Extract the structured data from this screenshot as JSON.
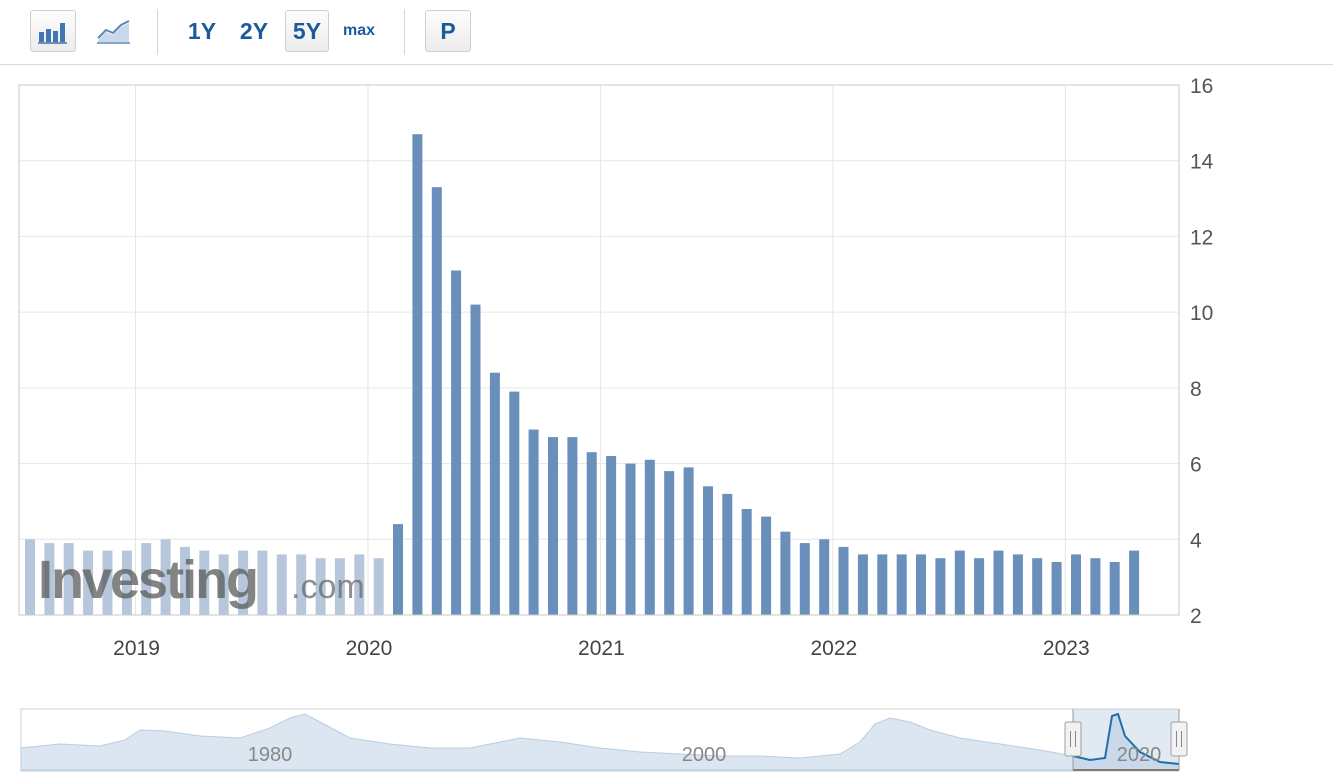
{
  "toolbar": {
    "bar_chart_icon": "bar-chart-icon",
    "line_chart_icon": "line-chart-icon",
    "ranges": [
      "1Y",
      "2Y",
      "5Y",
      "max"
    ],
    "active_range": "5Y",
    "p_label": "P"
  },
  "watermark": {
    "brand": "Investing",
    "suffix": ".com"
  },
  "colors": {
    "bar": "#6a8fba",
    "bar_watermarked": "#b6c7dc",
    "grid": "#e6e6e6",
    "navigator_line": "#1f6fa8",
    "navigator_fill": "#dbe6f1"
  },
  "chart_data": {
    "type": "bar",
    "title": "",
    "xlabel": "",
    "ylabel": "",
    "ylim": [
      2,
      16
    ],
    "y_ticks": [
      2,
      4,
      6,
      8,
      10,
      12,
      14,
      16
    ],
    "y_axis_side": "right",
    "x_ticks": [
      "2019",
      "2020",
      "2021",
      "2022",
      "2023"
    ],
    "grid": true,
    "legend": "none",
    "x_first": "2018-07",
    "values": [
      4.0,
      3.9,
      3.9,
      3.7,
      3.7,
      3.7,
      3.9,
      4.0,
      3.8,
      3.7,
      3.6,
      3.7,
      3.7,
      3.6,
      3.6,
      3.5,
      3.5,
      3.6,
      3.5,
      4.4,
      14.7,
      13.3,
      11.1,
      10.2,
      8.4,
      7.9,
      6.9,
      6.7,
      6.7,
      6.3,
      6.2,
      6.0,
      6.1,
      5.8,
      5.9,
      5.4,
      5.2,
      4.8,
      4.6,
      4.2,
      3.9,
      4.0,
      3.8,
      3.6,
      3.6,
      3.6,
      3.6,
      3.5,
      3.7,
      3.5,
      3.7,
      3.6,
      3.5,
      3.4,
      3.6,
      3.5,
      3.4,
      3.7
    ]
  },
  "navigator": {
    "labels": [
      "1980",
      "2000",
      "2020"
    ]
  }
}
